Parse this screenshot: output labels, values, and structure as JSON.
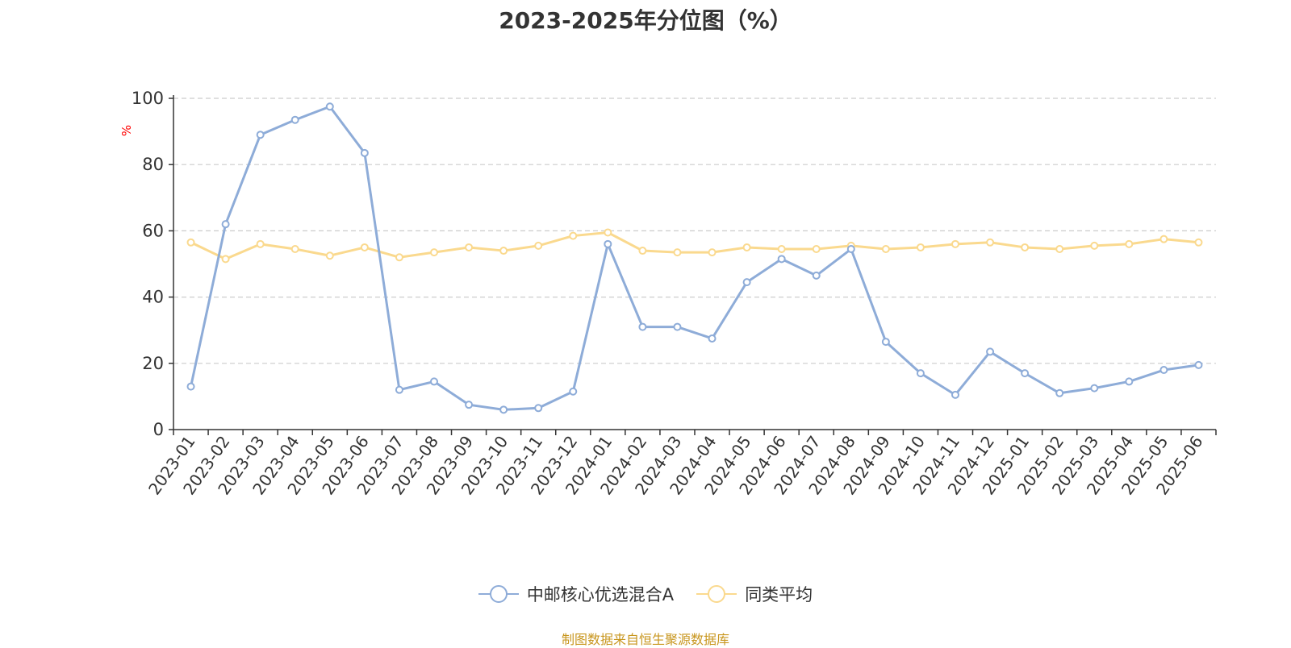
{
  "title": "2023-2025年分位图（%）",
  "source_note": "制图数据来自恒生聚源数据库",
  "colors": {
    "series_1": "#8eacd8",
    "series_2": "#fad98e",
    "grid": "#cccccc",
    "axis": "#333333",
    "ylabel": "#ff0000"
  },
  "legend": [
    {
      "name": "中邮核心优选混合A",
      "color": "#8eacd8"
    },
    {
      "name": "同类平均",
      "color": "#fad98e"
    }
  ],
  "chart_data": {
    "type": "line",
    "title": "2023-2025年分位图（%）",
    "xlabel": "",
    "ylabel": "%",
    "ylim": [
      0,
      100
    ],
    "yticks": [
      0,
      20,
      40,
      60,
      80,
      100
    ],
    "grid": true,
    "legend_position": "bottom",
    "categories": [
      "2023-01",
      "2023-02",
      "2023-03",
      "2023-04",
      "2023-05",
      "2023-06",
      "2023-07",
      "2023-08",
      "2023-09",
      "2023-10",
      "2023-11",
      "2023-12",
      "2024-01",
      "2024-02",
      "2024-03",
      "2024-04",
      "2024-05",
      "2024-06",
      "2024-07",
      "2024-08",
      "2024-09",
      "2024-10",
      "2024-11",
      "2024-12",
      "2025-01",
      "2025-02",
      "2025-03",
      "2025-04",
      "2025-05",
      "2025-06"
    ],
    "series": [
      {
        "name": "中邮核心优选混合A",
        "values": [
          13,
          62,
          89,
          93.5,
          97.5,
          83.5,
          12,
          14.5,
          7.5,
          6,
          6.5,
          11.5,
          56,
          31,
          31,
          27.5,
          44.5,
          51.5,
          46.5,
          54.5,
          26.5,
          17,
          10.5,
          23.5,
          17,
          11,
          12.5,
          14.5,
          18,
          19.5
        ]
      },
      {
        "name": "同类平均",
        "values": [
          56.5,
          51.5,
          56,
          54.5,
          52.5,
          55,
          52,
          53.5,
          55,
          54,
          55.5,
          58.5,
          59.5,
          54,
          53.5,
          53.5,
          55,
          54.5,
          54.5,
          55.5,
          54.5,
          55,
          56,
          56.5,
          55,
          54.5,
          55.5,
          56,
          57.5,
          56.5
        ]
      }
    ]
  }
}
